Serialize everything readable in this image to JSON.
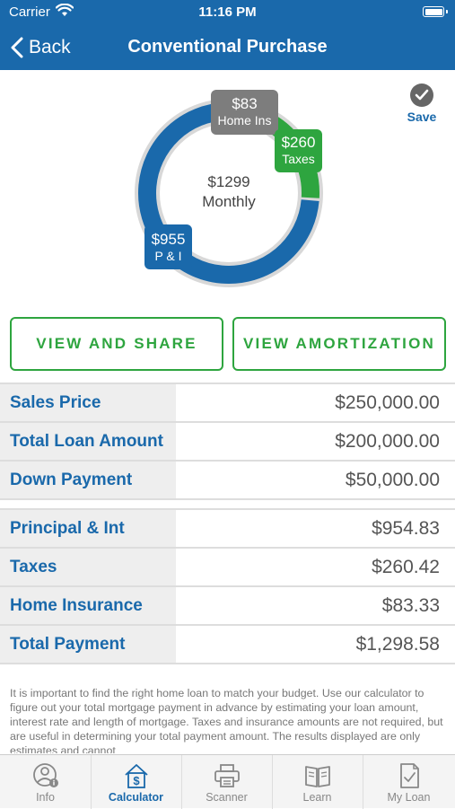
{
  "status": {
    "carrier": "Carrier",
    "time": "11:16 PM"
  },
  "nav": {
    "back_label": "Back",
    "title": "Conventional Purchase"
  },
  "save_label": "Save",
  "donut": {
    "center_amount": "$1299",
    "center_label": "Monthly",
    "home_ins": {
      "value": "$83",
      "label": "Home Ins"
    },
    "taxes": {
      "value": "$260",
      "label": "Taxes"
    },
    "pi": {
      "value": "$955",
      "label": "P & I"
    },
    "colors": {
      "home_ins": "#7d7d7d",
      "taxes": "#2ea53f",
      "pi": "#1a69ab"
    }
  },
  "buttons": {
    "share": "VIEW AND SHARE",
    "amortization": "VIEW AMORTIZATION"
  },
  "loan_rows": [
    {
      "label": "Sales Price",
      "value": "$250,000.00"
    },
    {
      "label": "Total Loan Amount",
      "value": "$200,000.00"
    },
    {
      "label": "Down Payment",
      "value": "$50,000.00"
    }
  ],
  "payment_rows": [
    {
      "label": "Principal & Int",
      "value": "$954.83"
    },
    {
      "label": "Taxes",
      "value": "$260.42"
    },
    {
      "label": "Home Insurance",
      "value": "$83.33"
    },
    {
      "label": "Total Payment",
      "value": "$1,298.58"
    }
  ],
  "disclaimer": "It is important to find the right home loan to match your budget. Use our calculator to figure out your total mortgage payment in advance by estimating your loan amount, interest rate and length of mortgage. Taxes and insurance amounts are not required, but are useful in determining your total payment amount.  The results displayed are only estimates and cannot",
  "tabs": [
    {
      "label": "Info",
      "icon": "info-user-icon"
    },
    {
      "label": "Calculator",
      "icon": "calculator-icon"
    },
    {
      "label": "Scanner",
      "icon": "printer-icon"
    },
    {
      "label": "Learn",
      "icon": "book-icon"
    },
    {
      "label": "My Loan",
      "icon": "document-check-icon"
    }
  ],
  "active_tab": "Calculator",
  "accent_color": "#1a69ab",
  "green_color": "#2ea53f"
}
